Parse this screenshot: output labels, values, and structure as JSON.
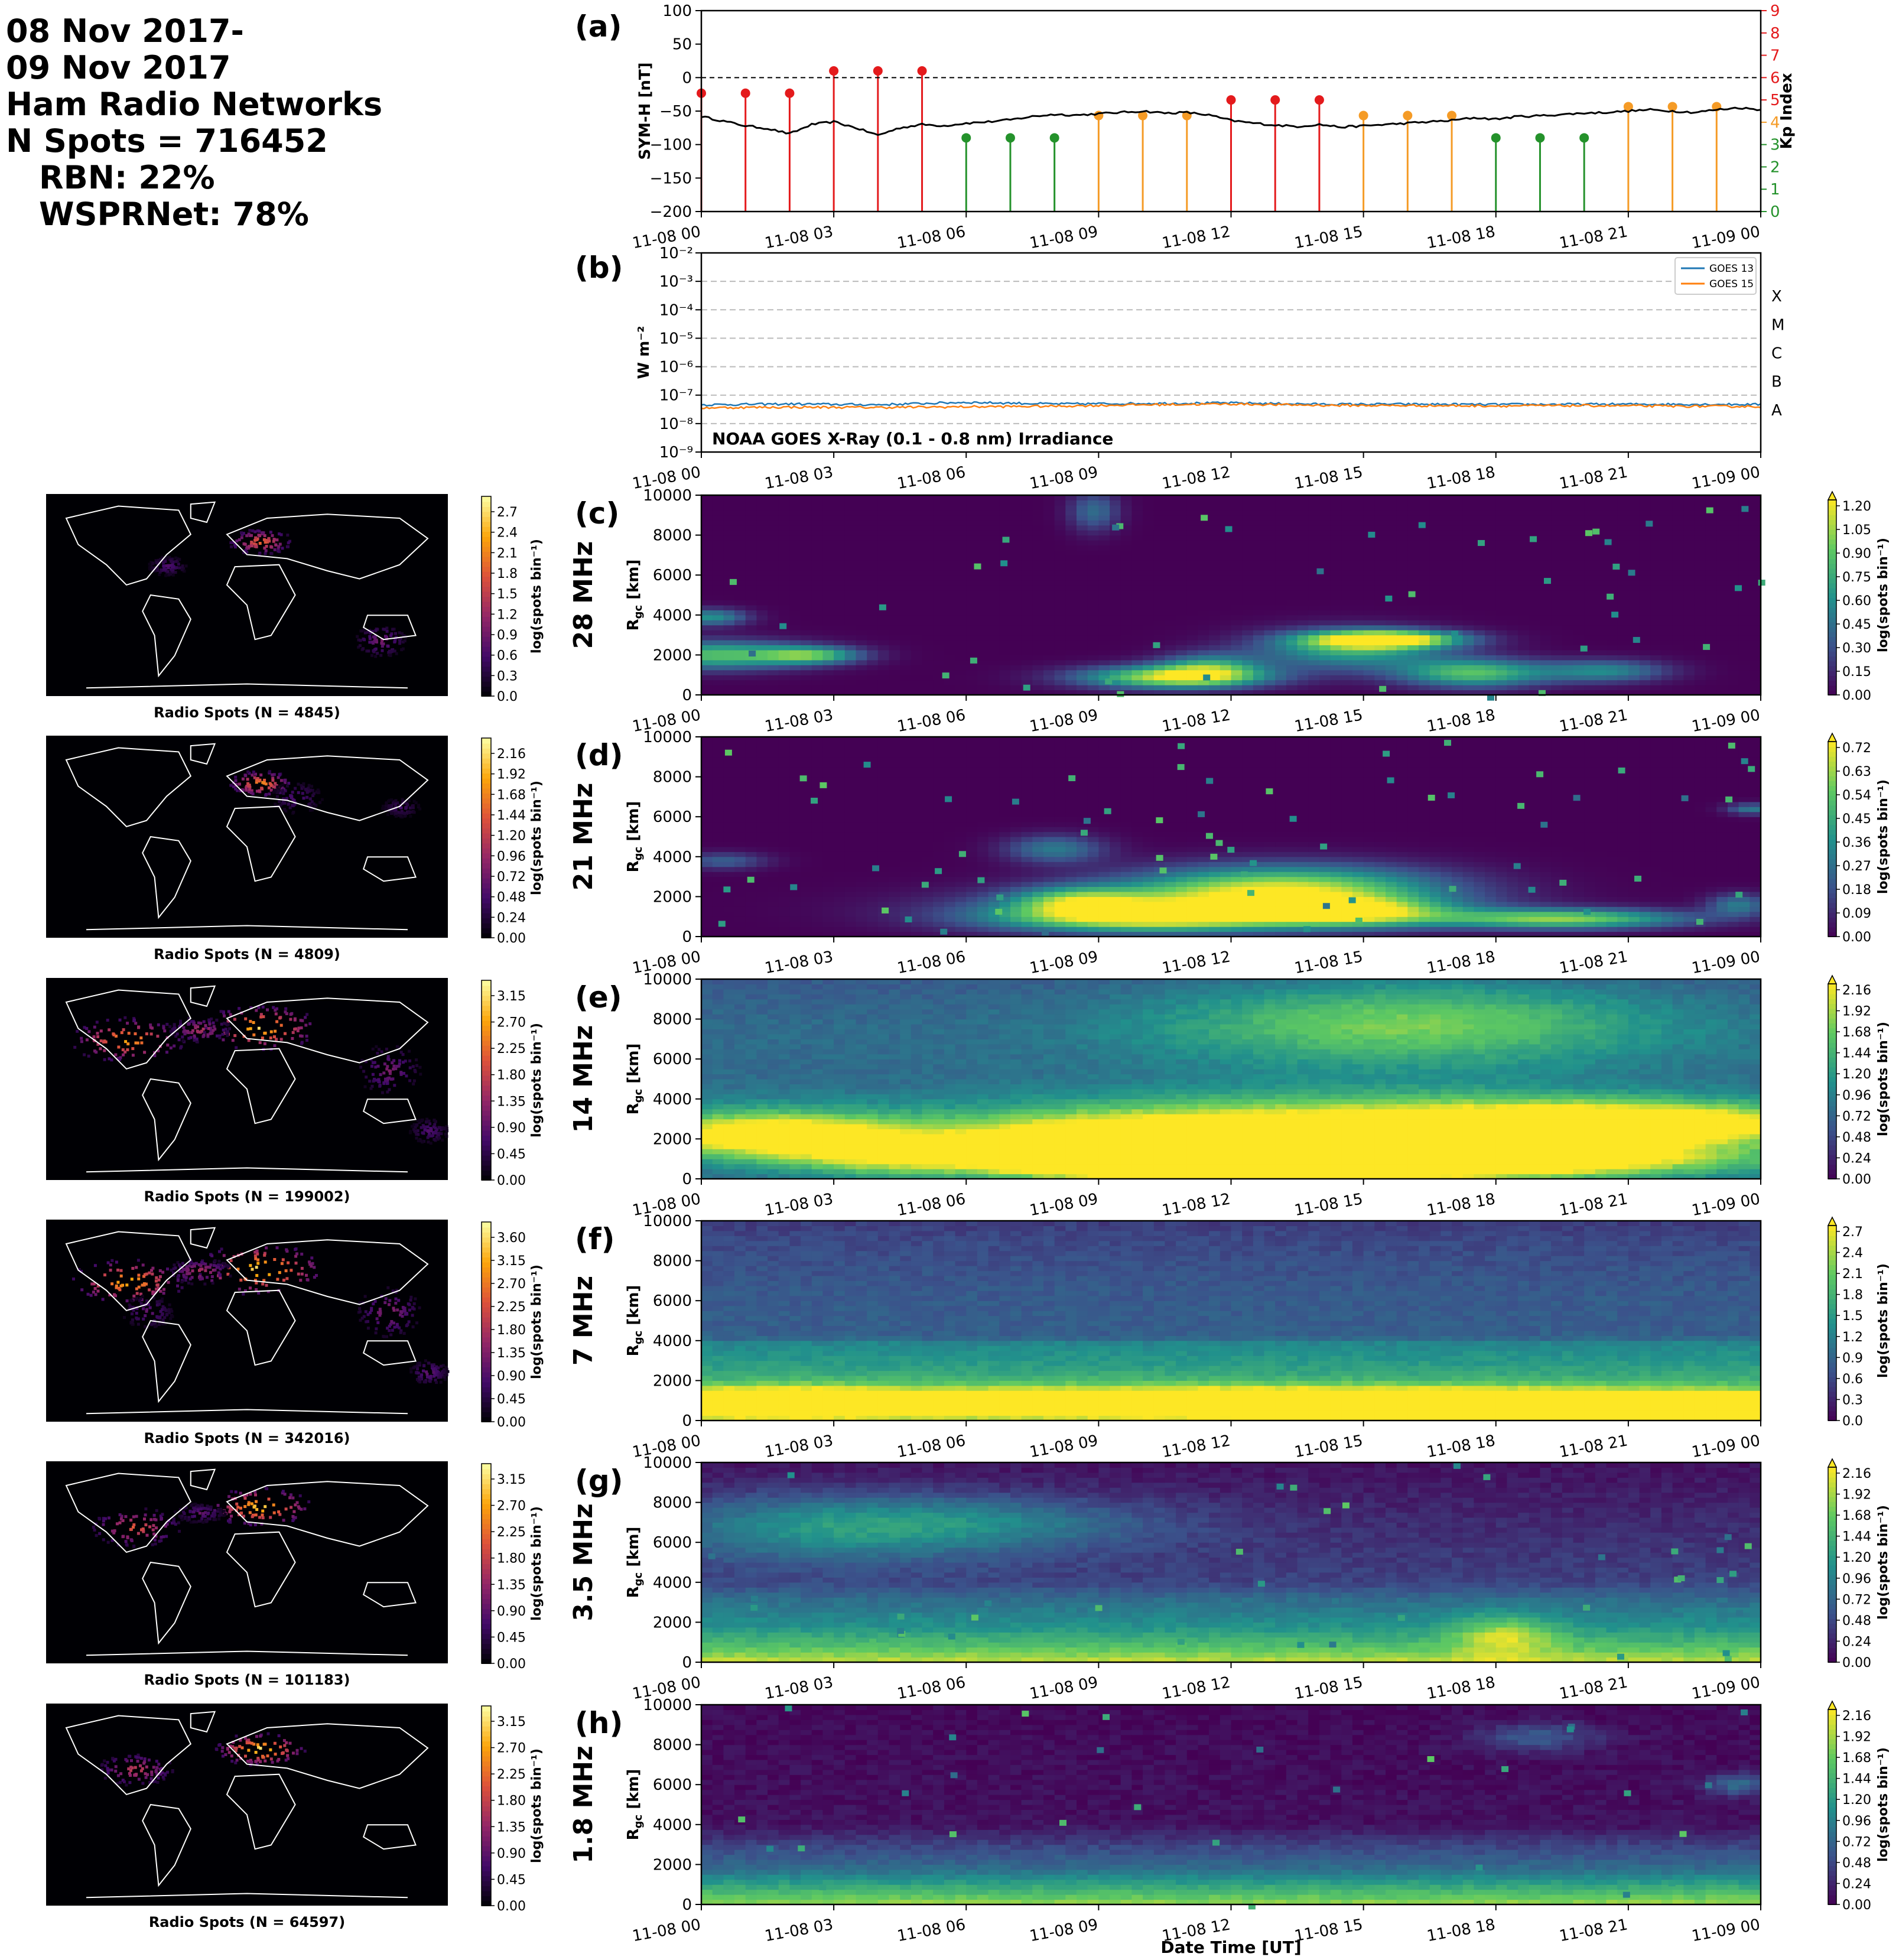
{
  "header": {
    "line1": "08 Nov 2017-",
    "line2": "09 Nov 2017",
    "line3": "Ham Radio Networks",
    "line4": "N Spots = 716452",
    "line5": "RBN: 22%",
    "line6": "WSPRNet: 78%"
  },
  "time_ticks": [
    "11-08 00",
    "11-08 03",
    "11-08 06",
    "11-08 09",
    "11-08 12",
    "11-08 15",
    "11-08 18",
    "11-08 21",
    "11-09 00"
  ],
  "xlabel": "Date Time [UT]",
  "colors": {
    "kp_red": "#e41a1c",
    "kp_orange": "#f59b26",
    "kp_green": "#24922b",
    "goes13": "#1f77b4",
    "goes15": "#ff7f0e",
    "viridis": [
      "#440154",
      "#3b528b",
      "#21918c",
      "#5ec962",
      "#fde725"
    ],
    "inferno": [
      "#000004",
      "#420a68",
      "#932667",
      "#dd513a",
      "#fca50a",
      "#fcffa4"
    ]
  },
  "chart_data": [
    {
      "id": "a",
      "type": "line",
      "panel_label": "(a)",
      "ylabel": "SYM-H [nT]",
      "ylim": [
        -200,
        100
      ],
      "yticks": [
        "100",
        "50",
        "0",
        "−50",
        "−100",
        "−150",
        "−200"
      ],
      "series": [
        {
          "name": "SYM-H",
          "x": [
            0,
            0.5,
            1,
            1.5,
            2,
            2.5,
            3,
            3.5,
            4,
            4.5,
            5,
            5.5,
            6,
            6.5,
            7,
            7.5,
            8,
            8.5,
            9,
            9.5,
            10,
            10.5,
            11,
            11.5,
            12,
            12.5,
            13,
            13.5,
            14,
            14.5,
            15,
            15.5,
            16,
            16.5,
            17,
            17.5,
            18,
            18.5,
            19,
            19.5,
            20,
            20.5,
            21,
            21.5,
            22,
            22.5,
            23,
            23.5,
            24
          ],
          "y": [
            -58,
            -65,
            -72,
            -76,
            -84,
            -70,
            -66,
            -75,
            -86,
            -75,
            -70,
            -72,
            -68,
            -66,
            -63,
            -58,
            -55,
            -56,
            -54,
            -52,
            -50,
            -53,
            -52,
            -56,
            -64,
            -68,
            -71,
            -73,
            -70,
            -74,
            -72,
            -70,
            -68,
            -66,
            -64,
            -60,
            -62,
            -58,
            -57,
            -55,
            -53,
            -52,
            -50,
            -48,
            -50,
            -52,
            -48,
            -45,
            -48
          ]
        }
      ],
      "secondary": {
        "name": "Kp Index",
        "ylim": [
          0,
          9
        ],
        "yticks": [
          "0",
          "1",
          "2",
          "3",
          "4",
          "5",
          "6",
          "7",
          "8",
          "9"
        ],
        "x": [
          0,
          1,
          2,
          3,
          4,
          5,
          6,
          7,
          8,
          9,
          10,
          11,
          12,
          13,
          14,
          15,
          16,
          17,
          18,
          19,
          20,
          21,
          22,
          23
        ],
        "values": [
          5.3,
          5.3,
          5.3,
          6.3,
          6.3,
          6.3,
          3.3,
          3.3,
          3.3,
          4.3,
          4.3,
          4.3,
          5.0,
          5.0,
          5.0,
          4.3,
          4.3,
          4.3,
          3.3,
          3.3,
          3.3,
          4.7,
          4.7,
          4.7
        ]
      },
      "reference_line": 0
    },
    {
      "id": "b",
      "type": "line",
      "panel_label": "(b)",
      "ylabel": "W m⁻²",
      "ylim": [
        1e-09,
        0.01
      ],
      "yscale": "log",
      "yticks": [
        "10⁻⁹",
        "10⁻⁸",
        "10⁻⁷",
        "10⁻⁶",
        "10⁻⁵",
        "10⁻⁴",
        "10⁻³",
        "10⁻²"
      ],
      "flare_classes": [
        "A",
        "B",
        "C",
        "M",
        "X"
      ],
      "annotation": "NOAA GOES X-Ray (0.1 - 0.8 nm) Irradiance",
      "legend": "top-right",
      "series": [
        {
          "name": "GOES 13",
          "x": [
            0,
            2,
            4,
            6,
            8,
            10,
            12,
            14,
            16,
            18,
            20,
            22,
            24
          ],
          "y": [
            4.6e-08,
            4.9e-08,
            4.6e-08,
            5.6e-08,
            4.9e-08,
            5.1e-08,
            5.3e-08,
            4.8e-08,
            4.8e-08,
            4.7e-08,
            4.8e-08,
            4.8e-08,
            4.7e-08
          ]
        },
        {
          "name": "GOES 15",
          "x": [
            0,
            2,
            4,
            6,
            8,
            10,
            12,
            14,
            16,
            18,
            20,
            22,
            24
          ],
          "y": [
            3.6e-08,
            3.8e-08,
            3.7e-08,
            3.9e-08,
            4.1e-08,
            4.6e-08,
            4.9e-08,
            4.4e-08,
            4.3e-08,
            4.2e-08,
            4.3e-08,
            4.1e-08,
            4e-08
          ]
        }
      ]
    },
    {
      "id": "c",
      "type": "heatmap",
      "panel_label": "(c)",
      "band": "28 MHz",
      "ylabel": "R_gc [km]",
      "ylim": [
        0,
        10000
      ],
      "yticks": [
        "0",
        "2000",
        "4000",
        "6000",
        "8000",
        "10000"
      ],
      "colorbar_label": "log(spots bin⁻¹)",
      "colorbar_ticks": [
        "0.00",
        "0.15",
        "0.30",
        "0.45",
        "0.60",
        "0.75",
        "0.90",
        "1.05",
        "1.20"
      ],
      "blobs": [
        [
          0.3,
          1.5,
          2000,
          500,
          0.7
        ],
        [
          0.2,
          0.6,
          3900,
          300,
          0.5
        ],
        [
          2.5,
          0.8,
          2000,
          300,
          0.6
        ],
        [
          10.7,
          1.5,
          900,
          400,
          0.9
        ],
        [
          15.5,
          1.2,
          2800,
          300,
          1.0
        ],
        [
          14.7,
          1.5,
          2300,
          700,
          0.6
        ],
        [
          17.5,
          1.2,
          1100,
          500,
          0.7
        ],
        [
          11.5,
          0.8,
          1400,
          500,
          0.5
        ],
        [
          8.9,
          0.4,
          9200,
          700,
          0.35
        ],
        [
          20.5,
          1,
          1200,
          400,
          0.45
        ]
      ],
      "ground_band": [
        0.95,
        120
      ],
      "specks": 45,
      "map_title": "Radio Spots (N = 4845)",
      "map_colorbar_ticks": [
        "0.0",
        "0.3",
        "0.6",
        "0.9",
        "1.2",
        "1.5",
        "1.8",
        "2.1",
        "2.4",
        "2.7"
      ],
      "map_hotspots": [
        [
          0.53,
          0.23,
          0.05,
          0.04,
          0.7
        ],
        [
          0.83,
          0.72,
          0.04,
          0.05,
          0.35
        ],
        [
          0.3,
          0.35,
          0.03,
          0.03,
          0.25
        ]
      ]
    },
    {
      "id": "d",
      "type": "heatmap",
      "panel_label": "(d)",
      "band": "21 MHz",
      "ylabel": "R_gc [km]",
      "ylim": [
        0,
        10000
      ],
      "yticks": [
        "0",
        "2000",
        "4000",
        "6000",
        "8000",
        "10000"
      ],
      "colorbar_label": "log(spots bin⁻¹)",
      "colorbar_ticks": [
        "0.00",
        "0.09",
        "0.18",
        "0.27",
        "0.36",
        "0.45",
        "0.54",
        "0.63",
        "0.72"
      ],
      "blobs": [
        [
          10,
          2.5,
          900,
          500,
          0.75
        ],
        [
          13.2,
          2.5,
          2500,
          800,
          0.8
        ],
        [
          11.5,
          3.5,
          1500,
          700,
          0.55
        ],
        [
          19.5,
          2,
          900,
          350,
          0.8
        ],
        [
          8.5,
          1,
          1800,
          500,
          0.5
        ],
        [
          14.8,
          1.5,
          1200,
          500,
          0.65
        ],
        [
          0.5,
          0.7,
          3800,
          300,
          0.3
        ],
        [
          23.5,
          0.5,
          1600,
          400,
          0.4
        ],
        [
          23.8,
          0.4,
          6400,
          200,
          0.4
        ],
        [
          8,
          0.8,
          4400,
          500,
          0.4
        ]
      ],
      "ground_band": [
        0.6,
        120
      ],
      "specks": 70,
      "map_title": "Radio Spots (N = 4809)",
      "map_colorbar_ticks": [
        "0.00",
        "0.24",
        "0.48",
        "0.72",
        "0.96",
        "1.20",
        "1.44",
        "1.68",
        "1.92",
        "2.16"
      ],
      "map_hotspots": [
        [
          0.53,
          0.23,
          0.05,
          0.04,
          0.8
        ],
        [
          0.62,
          0.3,
          0.04,
          0.05,
          0.25
        ],
        [
          0.88,
          0.35,
          0.03,
          0.03,
          0.2
        ]
      ]
    },
    {
      "id": "e",
      "type": "heatmap",
      "panel_label": "(e)",
      "band": "14 MHz",
      "ylabel": "R_gc [km]",
      "ylim": [
        0,
        10000
      ],
      "yticks": [
        "0",
        "2000",
        "4000",
        "6000",
        "8000",
        "10000"
      ],
      "colorbar_label": "log(spots bin⁻¹)",
      "colorbar_ticks": [
        "0.00",
        "0.24",
        "0.48",
        "0.72",
        "0.96",
        "1.20",
        "1.44",
        "1.68",
        "1.92",
        "2.16"
      ],
      "base": [
        [
          0,
          0.35
        ],
        [
          2500,
          0.45
        ],
        [
          5000,
          0.35
        ],
        [
          7500,
          0.35
        ],
        [
          10000,
          0.28
        ]
      ],
      "blobs": [
        [
          1.5,
          2,
          2200,
          800,
          0.75
        ],
        [
          15,
          5,
          1900,
          1400,
          0.9
        ],
        [
          11,
          3,
          600,
          400,
          0.9
        ],
        [
          16,
          4,
          1000,
          500,
          0.95
        ],
        [
          21,
          3,
          2800,
          700,
          0.7
        ],
        [
          16,
          4,
          7800,
          1500,
          0.45
        ],
        [
          9,
          3,
          1900,
          900,
          0.5
        ],
        [
          4,
          1.5,
          1200,
          700,
          0.4
        ]
      ],
      "specks": 0,
      "map_title": "Radio Spots (N = 199002)",
      "map_colorbar_ticks": [
        "0.00",
        "0.45",
        "0.90",
        "1.35",
        "1.80",
        "2.25",
        "2.70",
        "3.15"
      ],
      "map_hotspots": [
        [
          0.2,
          0.3,
          0.09,
          0.07,
          0.85
        ],
        [
          0.53,
          0.24,
          0.09,
          0.07,
          0.95
        ],
        [
          0.38,
          0.25,
          0.05,
          0.04,
          0.5
        ],
        [
          0.85,
          0.45,
          0.05,
          0.08,
          0.35
        ],
        [
          0.95,
          0.75,
          0.03,
          0.04,
          0.25
        ]
      ]
    },
    {
      "id": "f",
      "type": "heatmap",
      "panel_label": "(f)",
      "band": "7 MHz",
      "ylabel": "R_gc [km]",
      "ylim": [
        0,
        10000
      ],
      "yticks": [
        "0",
        "2000",
        "4000",
        "6000",
        "8000",
        "10000"
      ],
      "colorbar_label": "log(spots bin⁻¹)",
      "colorbar_ticks": [
        "0.0",
        "0.3",
        "0.6",
        "0.9",
        "1.2",
        "1.5",
        "1.8",
        "2.1",
        "2.4",
        "2.7"
      ],
      "base": [
        [
          0,
          0.7
        ],
        [
          2000,
          0.62
        ],
        [
          3900,
          0.45
        ],
        [
          4200,
          0.3
        ],
        [
          6500,
          0.28
        ],
        [
          9000,
          0.22
        ],
        [
          10000,
          0.18
        ]
      ],
      "blobs": [
        [
          13,
          9,
          900,
          500,
          0.9
        ],
        [
          1.5,
          2,
          900,
          500,
          0.6
        ],
        [
          20,
          4,
          600,
          400,
          0.85
        ]
      ],
      "specks": 0,
      "map_title": "Radio Spots (N = 342016)",
      "map_colorbar_ticks": [
        "0.00",
        "0.45",
        "0.90",
        "1.35",
        "1.80",
        "2.25",
        "2.70",
        "3.15",
        "3.60"
      ],
      "map_hotspots": [
        [
          0.2,
          0.3,
          0.09,
          0.07,
          0.9
        ],
        [
          0.53,
          0.24,
          0.1,
          0.08,
          1.0
        ],
        [
          0.38,
          0.25,
          0.05,
          0.04,
          0.5
        ],
        [
          0.85,
          0.45,
          0.05,
          0.08,
          0.4
        ],
        [
          0.95,
          0.75,
          0.03,
          0.04,
          0.3
        ],
        [
          0.25,
          0.45,
          0.04,
          0.05,
          0.3
        ]
      ]
    },
    {
      "id": "g",
      "type": "heatmap",
      "panel_label": "(g)",
      "band": "3.5 MHz",
      "ylabel": "R_gc [km]",
      "ylim": [
        0,
        10000
      ],
      "yticks": [
        "0",
        "2000",
        "4000",
        "6000",
        "8000",
        "10000"
      ],
      "colorbar_label": "log(spots bin⁻¹)",
      "colorbar_ticks": [
        "0.00",
        "0.24",
        "0.48",
        "0.72",
        "0.96",
        "1.20",
        "1.44",
        "1.68",
        "1.92",
        "2.16"
      ],
      "base": [
        [
          0,
          0.92
        ],
        [
          800,
          0.7
        ],
        [
          1800,
          0.5
        ],
        [
          3200,
          0.35
        ],
        [
          4000,
          0.2
        ],
        [
          10000,
          0.05
        ]
      ],
      "blobs": [
        [
          18.2,
          0.8,
          1400,
          700,
          0.35
        ],
        [
          3,
          3,
          6800,
          1200,
          0.35
        ],
        [
          7,
          3,
          7000,
          900,
          0.2
        ]
      ],
      "specks": 40,
      "map_title": "Radio Spots (N = 101183)",
      "map_colorbar_ticks": [
        "0.00",
        "0.45",
        "0.90",
        "1.35",
        "1.80",
        "2.25",
        "2.70",
        "3.15"
      ],
      "map_hotspots": [
        [
          0.53,
          0.22,
          0.08,
          0.06,
          0.95
        ],
        [
          0.22,
          0.32,
          0.07,
          0.06,
          0.65
        ],
        [
          0.38,
          0.25,
          0.04,
          0.03,
          0.3
        ]
      ]
    },
    {
      "id": "h",
      "type": "heatmap",
      "panel_label": "(h)",
      "band": "1.8 MHz",
      "ylabel": "R_gc [km]",
      "ylim": [
        0,
        10000
      ],
      "yticks": [
        "0",
        "2000",
        "4000",
        "6000",
        "8000",
        "10000"
      ],
      "colorbar_label": "log(spots bin⁻¹)",
      "colorbar_ticks": [
        "0.00",
        "0.24",
        "0.48",
        "0.72",
        "0.96",
        "1.20",
        "1.44",
        "1.68",
        "1.92",
        "2.16"
      ],
      "base": [
        [
          0,
          0.85
        ],
        [
          900,
          0.6
        ],
        [
          1800,
          0.35
        ],
        [
          3000,
          0.2
        ],
        [
          4000,
          0.05
        ],
        [
          10000,
          0.02
        ]
      ],
      "blobs": [
        [
          19,
          1,
          8400,
          500,
          0.25
        ],
        [
          23.5,
          0.5,
          6000,
          400,
          0.3
        ]
      ],
      "specks": 30,
      "map_title": "Radio Spots (N = 64597)",
      "map_colorbar_ticks": [
        "0.00",
        "0.45",
        "0.90",
        "1.35",
        "1.80",
        "2.25",
        "2.70",
        "3.15"
      ],
      "map_hotspots": [
        [
          0.53,
          0.22,
          0.07,
          0.05,
          1.0
        ],
        [
          0.22,
          0.32,
          0.06,
          0.05,
          0.55
        ]
      ]
    }
  ]
}
